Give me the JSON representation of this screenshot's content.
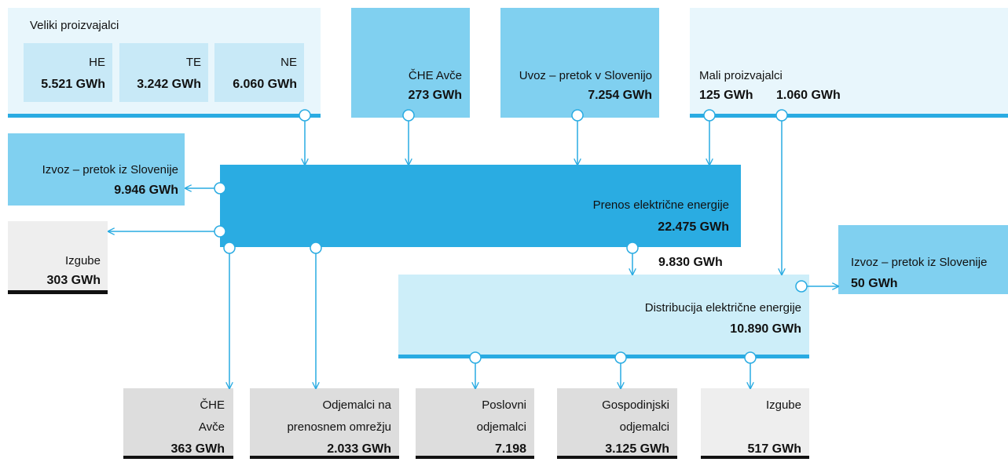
{
  "large_producers": {
    "title": "Veliki proizvajalci",
    "units": [
      {
        "label": "HE",
        "value": "5.521 GWh"
      },
      {
        "label": "TE",
        "value": "3.242 GWh"
      },
      {
        "label": "NE",
        "value": "6.060 GWh"
      }
    ]
  },
  "pumped_storage_in": {
    "label": "ČHE Avče",
    "value": "273 GWh"
  },
  "import": {
    "label": "Uvoz – pretok v Slovenijo",
    "value": "7.254 GWh"
  },
  "small_producers": {
    "label": "Mali proizvajalci",
    "values": [
      "125 GWh",
      "1.060 GWh"
    ]
  },
  "export_transmission": {
    "label": "Izvoz – pretok iz Slovenije",
    "value": "9.946 GWh"
  },
  "transmission": {
    "label": "Prenos električne energije",
    "value": "22.475 GWh"
  },
  "losses_transmission": {
    "label": "Izgube",
    "value": "303 GWh"
  },
  "flow_to_distribution": "9.830 GWh",
  "export_distribution": {
    "label": "Izvoz – pretok iz Slovenije",
    "value": "50 GWh"
  },
  "distribution": {
    "label": "Distribucija električne energije",
    "value": "10.890 GWh"
  },
  "consumers": [
    {
      "lines": [
        "ČHE",
        "Avče"
      ],
      "value": "363 GWh"
    },
    {
      "lines": [
        "Odjemalci na",
        "prenosnem omrežju"
      ],
      "value": "2.033 GWh"
    },
    {
      "lines": [
        "Poslovni",
        "odjemalci"
      ],
      "value": "7.198"
    },
    {
      "lines": [
        "Gospodinjski",
        "odjemalci"
      ],
      "value": "3.125 GWh"
    },
    {
      "lines": [
        "Izgube"
      ],
      "value": "517 GWh"
    }
  ]
}
